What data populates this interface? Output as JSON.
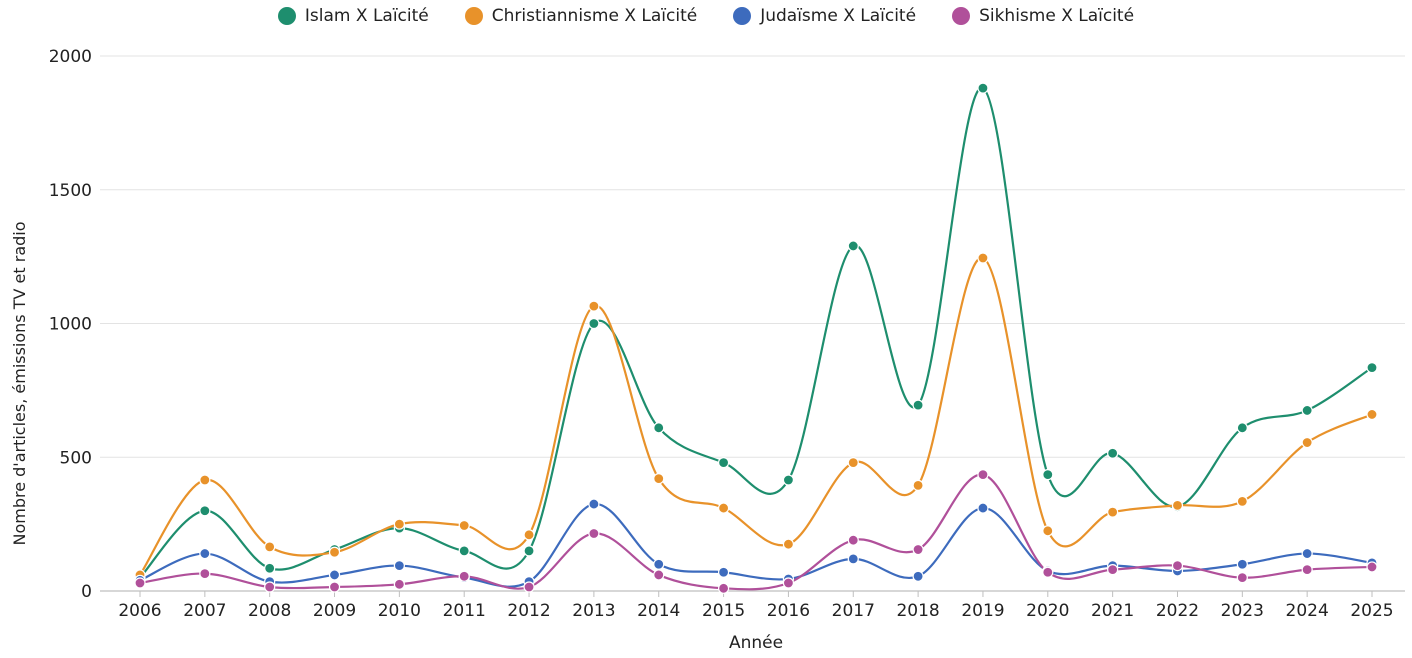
{
  "chart_data": {
    "type": "line",
    "title": "",
    "xlabel": "Année",
    "ylabel": "Nombre d'articles, émissions TV et radio",
    "x": [
      "2006",
      "2007",
      "2008",
      "2009",
      "2010",
      "2011",
      "2012",
      "2013",
      "2014",
      "2015",
      "2016",
      "2017",
      "2018",
      "2019",
      "2020",
      "2021",
      "2022",
      "2023",
      "2024",
      "2025"
    ],
    "ylim": [
      0,
      2000
    ],
    "yticks": [
      0,
      500,
      1000,
      1500,
      2000
    ],
    "grid": true,
    "legend_position": "top-center",
    "series": [
      {
        "name": "Islam X Laïcité",
        "color": "#1e8e6e",
        "values": [
          50,
          300,
          85,
          155,
          235,
          150,
          150,
          1000,
          610,
          480,
          415,
          1290,
          695,
          1880,
          435,
          515,
          315,
          610,
          675,
          835
        ]
      },
      {
        "name": "Christiannisme X Laïcité",
        "color": "#e8922a",
        "values": [
          60,
          415,
          165,
          145,
          250,
          245,
          210,
          1065,
          420,
          310,
          175,
          480,
          395,
          1245,
          225,
          295,
          320,
          335,
          555,
          660
        ]
      },
      {
        "name": "Judaïsme X Laïcité",
        "color": "#3d6bbd",
        "values": [
          40,
          140,
          35,
          60,
          95,
          50,
          35,
          325,
          100,
          70,
          45,
          120,
          55,
          310,
          75,
          95,
          75,
          100,
          140,
          105
        ]
      },
      {
        "name": "Sikhisme X Laïcité",
        "color": "#b0509a",
        "values": [
          30,
          65,
          15,
          15,
          25,
          55,
          15,
          215,
          60,
          10,
          30,
          190,
          155,
          435,
          70,
          80,
          95,
          50,
          80,
          90
        ]
      }
    ]
  }
}
